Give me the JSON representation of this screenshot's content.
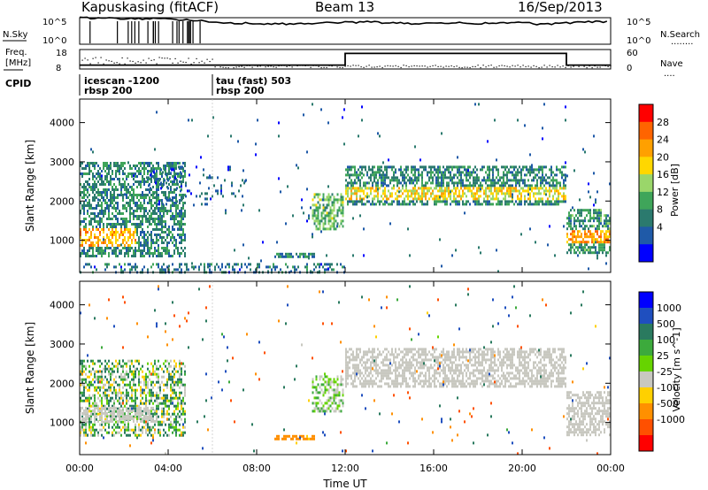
{
  "header": {
    "station": "Kapuskasing (fitACF)",
    "beam": "Beam 13",
    "date": "16/Sep/2013"
  },
  "noise_panel": {
    "left_label": "N.Sky",
    "right_label": "N.Search",
    "right_legend": "........",
    "left_ticks": [
      "10^5",
      "10^0"
    ],
    "right_ticks": [
      "10^5",
      "10^0"
    ]
  },
  "freq_panel": {
    "left_label_line1": "Freq.",
    "left_label_line2": "[MHz]",
    "left_ticks": [
      "18",
      "8"
    ],
    "right_label": "Nave",
    "right_legend": "....",
    "right_ticks": [
      "60",
      "0"
    ]
  },
  "cpid": {
    "label": "CPID",
    "segments": [
      {
        "start_hour": 0,
        "name": "icescan -1200",
        "sub": "rbsp 200"
      },
      {
        "start_hour": 6,
        "name": "tau (fast) 503",
        "sub": "rbsp 200"
      }
    ]
  },
  "power_colorbar": {
    "title": "Power [dB]",
    "levels": [
      "28",
      "24",
      "20",
      "16",
      "12",
      "8",
      "4"
    ],
    "colors": [
      "#ff0000",
      "#ff6400",
      "#ffa000",
      "#ffd700",
      "#9ad66a",
      "#3fa55a",
      "#2b7a6e",
      "#1f5aa8",
      "#0000ff"
    ]
  },
  "velocity_colorbar": {
    "title": "Velocity [m s^-1]",
    "levels": [
      "1000",
      "500",
      "100",
      "25",
      "-25",
      "-100",
      "-500",
      "-1000"
    ],
    "colors": [
      "#0000ff",
      "#1f4fbf",
      "#2a7a5f",
      "#3caa3c",
      "#66d400",
      "#c8c8c0",
      "#ffd000",
      "#ff9000",
      "#ff5000",
      "#ff0000"
    ]
  },
  "axes": {
    "ylabel": "Slant Range [km]",
    "xlabel": "Time UT",
    "yticks": [
      "1000",
      "2000",
      "3000",
      "4000"
    ],
    "xticks": [
      "00:00",
      "04:00",
      "08:00",
      "12:00",
      "16:00",
      "20:00",
      "00:00"
    ]
  },
  "chart_data": [
    {
      "type": "heatmap",
      "title": "Power",
      "xlabel": "Time UT",
      "ylabel": "Slant Range [km]",
      "xlim": [
        0,
        24
      ],
      "ylim": [
        180,
        4600
      ],
      "colorbar_range": [
        0,
        30
      ],
      "regions": [
        {
          "t0": 0.0,
          "t1": 4.8,
          "r0": 600,
          "r1": 3000,
          "base": 9,
          "hot_r0": 900,
          "hot_r1": 1350,
          "hot_t1": 2.5,
          "hot": 21,
          "density": 0.55
        },
        {
          "t0": 3.0,
          "t1": 7.5,
          "r0": 1950,
          "r1": 2900,
          "base": 6,
          "density": 0.12
        },
        {
          "t0": 0.0,
          "t1": 12.0,
          "r0": 180,
          "r1": 420,
          "base": 7,
          "density": 0.35
        },
        {
          "t0": 8.8,
          "t1": 10.6,
          "r0": 560,
          "r1": 680,
          "base": 9,
          "density": 0.8
        },
        {
          "t0": 10.5,
          "t1": 11.9,
          "r0": 1300,
          "r1": 2200,
          "base": 13,
          "density": 0.55
        },
        {
          "t0": 12.0,
          "t1": 22.0,
          "r0": 1950,
          "r1": 2900,
          "base": 9,
          "hot_r0": 2050,
          "hot_r1": 2400,
          "hot": 18,
          "density": 0.6
        },
        {
          "t0": 22.0,
          "t1": 24.0,
          "r0": 700,
          "r1": 1800,
          "base": 10,
          "hot_r0": 950,
          "hot_r1": 1300,
          "hot": 22,
          "density": 0.6
        },
        {
          "t0": 0.0,
          "t1": 24.0,
          "r0": 180,
          "r1": 4500,
          "base": 6,
          "density": 0.01
        }
      ]
    },
    {
      "type": "heatmap",
      "title": "Velocity",
      "xlabel": "Time UT",
      "ylabel": "Slant Range [km]",
      "xlim": [
        0,
        24
      ],
      "ylim": [
        180,
        4600
      ],
      "colorbar_range": [
        -1000,
        1000
      ],
      "regions": [
        {
          "t0": 0.0,
          "t1": 4.8,
          "r0": 700,
          "r1": 2600,
          "v": 60,
          "spread": 120,
          "density": 0.5
        },
        {
          "t0": 0.0,
          "t1": 3.5,
          "r0": 1000,
          "r1": 1400,
          "v": 0,
          "spread": 10,
          "density": 0.6
        },
        {
          "t0": 8.8,
          "t1": 10.6,
          "r0": 560,
          "r1": 680,
          "v": -150,
          "spread": 60,
          "density": 0.8
        },
        {
          "t0": 10.5,
          "t1": 11.9,
          "r0": 1300,
          "r1": 2200,
          "v": 30,
          "spread": 40,
          "density": 0.5
        },
        {
          "t0": 12.0,
          "t1": 22.0,
          "r0": 1950,
          "r1": 2900,
          "v": 0,
          "spread": 15,
          "density": 0.6
        },
        {
          "t0": 22.0,
          "t1": 24.0,
          "r0": 700,
          "r1": 1800,
          "v": 0,
          "spread": 15,
          "density": 0.6
        },
        {
          "t0": 0.0,
          "t1": 24.0,
          "r0": 180,
          "r1": 4500,
          "v": 0,
          "spread": 600,
          "density": 0.012
        }
      ]
    },
    {
      "type": "line",
      "title": "N.Sky / N.Search",
      "x": [
        0,
        1,
        2,
        3,
        4,
        5,
        6,
        7,
        8,
        9,
        10,
        11,
        12,
        13,
        14,
        15,
        16,
        17,
        18,
        19,
        20,
        21,
        22,
        23,
        24
      ],
      "series": [
        {
          "name": "N.Sky",
          "values": [
            5.0,
            4.9,
            4.8,
            4.8,
            4.7,
            4.6,
            4.2,
            4.0,
            3.9,
            3.8,
            3.9,
            4.0,
            4.1,
            4.2,
            4.0,
            3.9,
            3.9,
            4.0,
            3.9,
            4.0,
            4.1,
            3.7,
            4.0,
            4.2,
            4.3
          ]
        }
      ],
      "ylim": [
        0,
        5
      ]
    },
    {
      "type": "line",
      "title": "Freq. / Nave",
      "x": [
        0,
        6,
        6,
        12,
        12,
        22,
        22,
        24
      ],
      "series": [
        {
          "name": "Freq.",
          "values": [
            10,
            10,
            10,
            10,
            16,
            16,
            10,
            10
          ]
        }
      ],
      "ylim": [
        8,
        18
      ]
    }
  ]
}
